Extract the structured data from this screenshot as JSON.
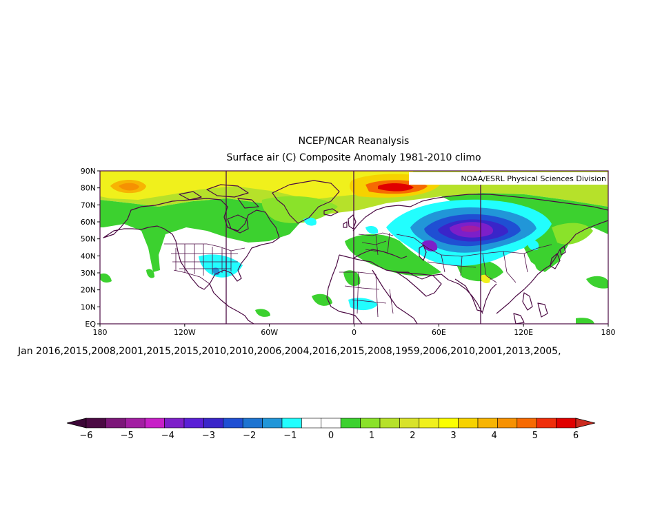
{
  "title": "NCEP/NCAR Reanalysis",
  "subtitle": "Surface air (C) Composite Anomaly 1981-2010 climo",
  "credit": "NOAA/ESRL Physical Sciences Division",
  "years_line": "Jan 2016,2015,2008,2001,2015,2015,2010,2010,2006,2004,2016,2015,2008,1959,2006,2010,2001,2013,2005,",
  "map": {
    "projection": "equirectangular",
    "lon_range": [
      -180,
      180
    ],
    "lat_range": [
      0,
      90
    ],
    "lat_ticks": [
      "EQ",
      "10N",
      "20N",
      "30N",
      "40N",
      "50N",
      "60N",
      "70N",
      "80N",
      "90N"
    ],
    "lon_ticks": [
      "180",
      "120W",
      "60W",
      "0",
      "60E",
      "120E",
      "180"
    ],
    "vertical_lines_lon": [
      -90,
      0,
      90
    ]
  },
  "colorbar": {
    "labels": [
      "-6",
      "-5",
      "-4",
      "-3",
      "-2",
      "-1",
      "0",
      "1",
      "2",
      "3",
      "4",
      "5",
      "6"
    ],
    "colors": [
      "#4b0a43",
      "#7c1779",
      "#a21ea2",
      "#c71fc7",
      "#7d1fc9",
      "#5a1fd6",
      "#3a25c9",
      "#1f4fd3",
      "#1d74d1",
      "#2196d8",
      "#22fefe",
      "#ffffff",
      "#ffffff",
      "#3cd12f",
      "#8ae22a",
      "#b6e12a",
      "#d8e22a",
      "#f0f01c",
      "#fbfe00",
      "#f6d200",
      "#f7b403",
      "#f69102",
      "#f66a02",
      "#ef2e0b",
      "#e00000"
    ],
    "left_arrow_color": "#3c0637",
    "right_arrow_color": "#cb2a1f"
  },
  "anomaly_regions": [
    {
      "name": "arctic-pacific-warm",
      "value": 3
    },
    {
      "name": "alaska-warm",
      "value": 2
    },
    {
      "name": "barents-hot",
      "value": 6
    },
    {
      "name": "siberia-cold",
      "value": -5
    },
    {
      "name": "west-siberia-cold",
      "value": -3
    },
    {
      "name": "southeast-us-cool",
      "value": -1
    },
    {
      "name": "greenland-warm",
      "value": 1.5
    }
  ]
}
